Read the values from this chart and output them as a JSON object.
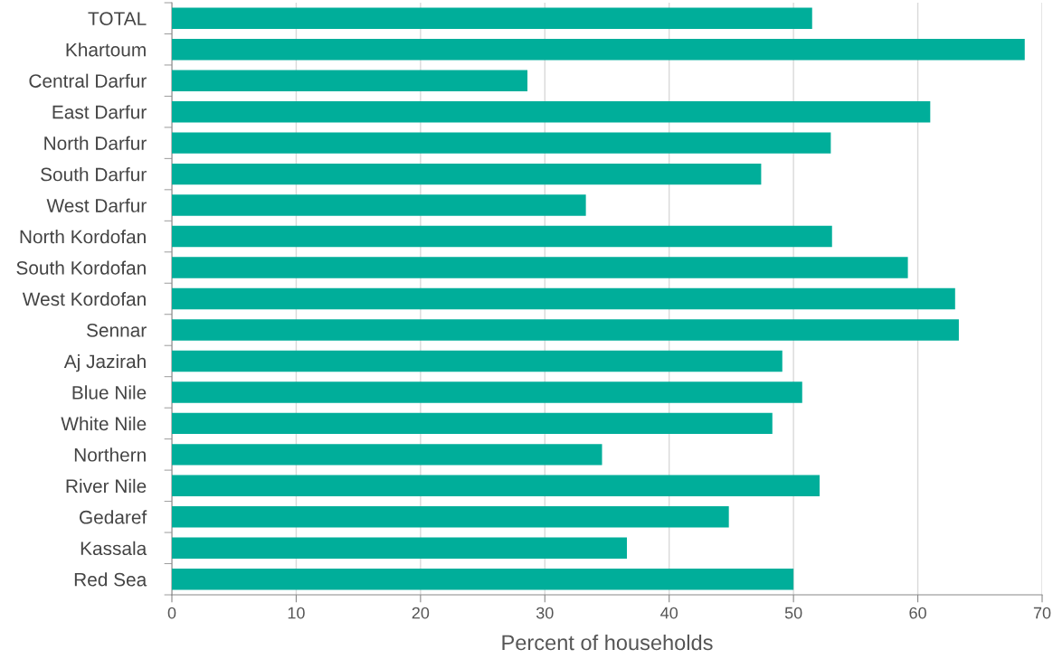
{
  "chart_data": {
    "type": "bar",
    "orientation": "horizontal",
    "xlabel": "Percent of households",
    "categories": [
      "TOTAL",
      "Khartoum",
      "Central Darfur",
      "East Darfur",
      "North Darfur",
      "South Darfur",
      "West Darfur",
      "North Kordofan",
      "South Kordofan",
      "West Kordofan",
      "Sennar",
      "Aj Jazirah",
      "Blue Nile",
      "White Nile",
      "Northern",
      "River Nile",
      "Gedaref",
      "Kassala",
      "Red Sea"
    ],
    "values": [
      51.5,
      68.6,
      28.6,
      61.0,
      53.0,
      47.4,
      33.3,
      53.1,
      59.2,
      63.0,
      63.3,
      49.1,
      50.7,
      48.3,
      34.6,
      52.1,
      44.8,
      36.6,
      50.0
    ],
    "color": "#00ae9a",
    "xlim": [
      0,
      70
    ],
    "xticks": [
      0,
      10,
      20,
      30,
      40,
      50,
      60,
      70
    ],
    "grid": "x"
  }
}
